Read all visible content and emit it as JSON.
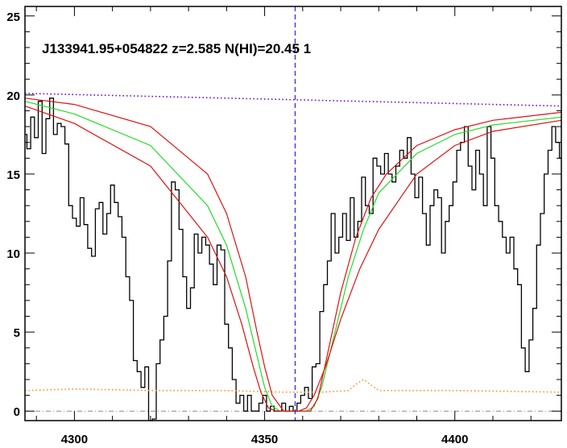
{
  "chart_data": {
    "type": "line",
    "title": "J133941.95+054822 z=2.585 N(HI)=20.45 1",
    "xlabel": "",
    "ylabel": "",
    "xlim": [
      4287,
      4428
    ],
    "ylim": [
      -0.6,
      25.6
    ],
    "x_ticks": [
      4300,
      4350,
      4400
    ],
    "y_ticks": [
      0,
      5,
      10,
      15,
      20,
      25
    ],
    "grid": false,
    "center_wavelength": 4358,
    "colors": {
      "flux": "#000000",
      "continuum": "#6a00d8",
      "error": "#ff8c1a",
      "fit": "#22dd22",
      "fit_bounds": "#dd1111",
      "center": "#0000cc",
      "zero": "#888888"
    },
    "series": [
      {
        "style": "step",
        "x": [
          4287,
          4288,
          4289,
          4290,
          4291,
          4292,
          4293,
          4294,
          4295,
          4296,
          4297,
          4298,
          4299,
          4300,
          4301,
          4302,
          4303,
          4304,
          4305,
          4306,
          4307,
          4308,
          4309,
          4310,
          4311,
          4312,
          4313,
          4314,
          4315,
          4316,
          4317,
          4318,
          4319,
          4320,
          4321,
          4322,
          4323,
          4324,
          4325,
          4326,
          4327,
          4328,
          4329,
          4330,
          4331,
          4332,
          4333,
          4334,
          4335,
          4336,
          4337,
          4338,
          4339,
          4340,
          4341,
          4342,
          4343,
          4344,
          4345,
          4346,
          4347,
          4348,
          4349,
          4350,
          4351,
          4352,
          4353,
          4354,
          4355,
          4356,
          4357,
          4358,
          4359,
          4360,
          4361,
          4362,
          4363,
          4364,
          4365,
          4366,
          4367,
          4368,
          4369,
          4370,
          4371,
          4372,
          4373,
          4374,
          4375,
          4376,
          4377,
          4378,
          4379,
          4380,
          4381,
          4382,
          4383,
          4384,
          4385,
          4386,
          4387,
          4388,
          4389,
          4390,
          4391,
          4392,
          4393,
          4394,
          4395,
          4396,
          4397,
          4398,
          4399,
          4400,
          4401,
          4402,
          4403,
          4404,
          4405,
          4406,
          4407,
          4408,
          4409,
          4410,
          4411,
          4412,
          4413,
          4414,
          4415,
          4416,
          4417,
          4418,
          4419,
          4420,
          4421,
          4422,
          4423,
          4424,
          4425,
          4426,
          4427,
          4428
        ],
        "values": [
          17.5,
          16.6,
          18.6,
          17.3,
          19.6,
          16.3,
          18.5,
          19.8,
          17.5,
          18.2,
          18.0,
          16.9,
          13.0,
          12.2,
          11.7,
          13.5,
          11.8,
          10.3,
          9.8,
          12.8,
          13.2,
          11.2,
          12.5,
          14.3,
          13.2,
          12.3,
          11.0,
          8.5,
          7.0,
          3.2,
          2.5,
          1.5,
          2.8,
          -1.0,
          -0.5,
          3.0,
          4.5,
          6.0,
          9.5,
          14.5,
          14.0,
          11.5,
          8.5,
          6.5,
          7.8,
          11.2,
          10.0,
          11.0,
          10.5,
          9.3,
          8.0,
          10.5,
          10.2,
          5.5,
          4.0,
          2.0,
          0.5,
          1.0,
          0.0,
          1.0,
          0.0,
          0.0,
          0.5,
          1.0,
          0.0,
          0.3,
          0.0,
          0.0,
          0.5,
          0.0,
          0.3,
          0.0,
          0.5,
          1.0,
          1.5,
          0.8,
          2.8,
          3.0,
          6.3,
          8.0,
          9.5,
          12.5,
          10.0,
          11.0,
          12.5,
          10.8,
          13.5,
          11.0,
          12.0,
          14.8,
          13.0,
          12.5,
          16.0,
          15.5,
          15.0,
          16.3,
          15.0,
          14.5,
          15.5,
          16.5,
          16.0,
          17.3,
          15.0,
          13.5,
          14.8,
          12.5,
          10.5,
          13.0,
          14.0,
          13.5,
          10.0,
          12.0,
          13.0,
          14.5,
          16.5,
          17.0,
          18.0,
          15.5,
          14.0,
          16.5,
          15.0,
          13.0,
          18.0,
          16.0,
          13.0,
          12.0,
          11.0,
          10.0,
          11.0,
          9.0,
          8.0,
          4.0,
          2.5,
          4.5,
          6.5,
          10.5,
          12.5,
          15.0,
          16.5,
          18.0,
          17.0,
          16.0
        ]
      },
      {
        "style": "dotted",
        "color_key": "continuum",
        "x": [
          4287,
          4428
        ],
        "values": [
          20.1,
          19.3
        ]
      },
      {
        "style": "dotted",
        "color_key": "error",
        "x": [
          4287,
          4300,
          4320,
          4340,
          4355,
          4365,
          4372,
          4374,
          4376,
          4380,
          4400,
          4428
        ],
        "values": [
          1.3,
          1.4,
          1.3,
          1.3,
          1.2,
          1.2,
          1.3,
          1.7,
          2.0,
          1.3,
          1.3,
          1.2
        ]
      },
      {
        "style": "solid",
        "color_key": "fit",
        "x": [
          4287,
          4300,
          4320,
          4335,
          4340,
          4345,
          4348,
          4350,
          4352,
          4354,
          4358,
          4361,
          4363,
          4365,
          4368,
          4372,
          4376,
          4380,
          4390,
          4400,
          4410,
          4428
        ],
        "values": [
          19.6,
          18.8,
          16.8,
          13.0,
          10.5,
          6.5,
          3.5,
          1.5,
          0.3,
          0.0,
          0.0,
          0.0,
          0.3,
          1.5,
          4.5,
          8.5,
          11.5,
          13.8,
          16.3,
          17.5,
          18.1,
          18.6
        ]
      },
      {
        "style": "solid",
        "color_key": "fit_bounds",
        "x": [
          4287,
          4300,
          4320,
          4335,
          4340,
          4345,
          4348,
          4350,
          4352,
          4355,
          4358,
          4362,
          4364,
          4366,
          4370,
          4374,
          4378,
          4382,
          4390,
          4400,
          4410,
          4428
        ],
        "values": [
          19.8,
          19.4,
          18.0,
          15.0,
          12.5,
          8.5,
          5.0,
          2.8,
          1.0,
          0.0,
          0.0,
          0.0,
          0.8,
          3.0,
          7.5,
          11.0,
          13.5,
          15.0,
          16.8,
          17.8,
          18.4,
          18.9
        ]
      },
      {
        "style": "solid",
        "color_key": "fit_bounds",
        "x": [
          4287,
          4300,
          4320,
          4335,
          4340,
          4344,
          4347,
          4349,
          4351,
          4353,
          4358,
          4359,
          4361,
          4363,
          4366,
          4370,
          4375,
          4380,
          4390,
          4400,
          4410,
          4428
        ],
        "values": [
          19.3,
          18.2,
          15.5,
          11.0,
          8.5,
          5.5,
          2.8,
          1.2,
          0.2,
          0.0,
          0.0,
          0.0,
          0.2,
          1.0,
          2.8,
          5.8,
          9.0,
          11.5,
          15.0,
          16.8,
          17.7,
          18.4
        ]
      }
    ]
  }
}
